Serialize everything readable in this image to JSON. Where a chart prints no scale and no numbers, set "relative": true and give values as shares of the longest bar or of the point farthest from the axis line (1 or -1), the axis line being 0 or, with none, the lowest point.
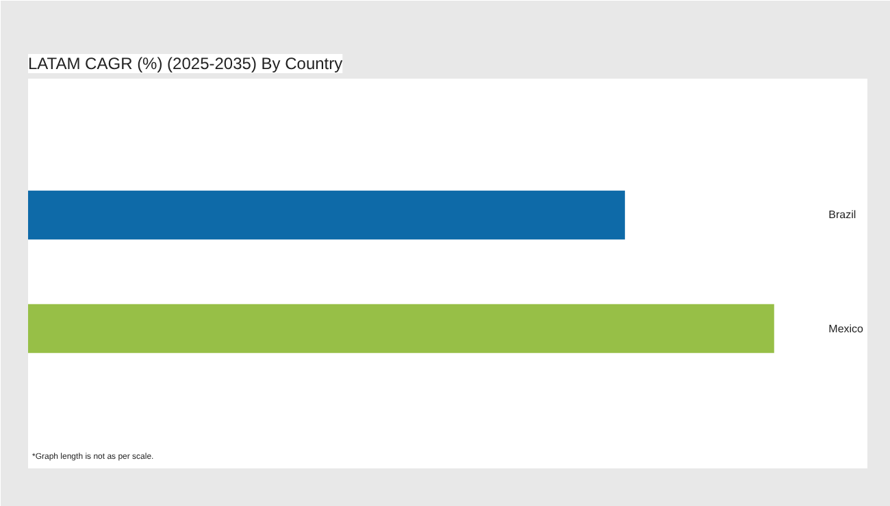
{
  "chart_data": {
    "type": "bar",
    "orientation": "horizontal",
    "relative": true,
    "title": "LATAM CAGR (%) (2025-2035) By Country",
    "categories": [
      "Brazil",
      "Mexico"
    ],
    "values": [
      0.8,
      1.0
    ],
    "colors": [
      "#0e6aa8",
      "#97bf47"
    ],
    "annotations": [
      "*Graph length is not as per scale."
    ]
  }
}
